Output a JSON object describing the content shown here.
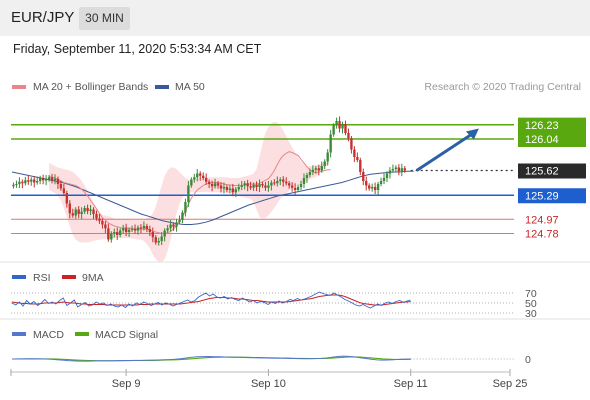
{
  "header": {
    "symbol": "EUR/JPY",
    "timeframe": "30 MIN"
  },
  "datetime": "Friday, September 11, 2020 5:53:34 AM CET",
  "credit": "Research © 2020 Trading Central",
  "colors": {
    "resistance": "#5aa80f",
    "support": "#1e5fcf",
    "pivot": "#2a2a2a",
    "minor": "#e07575",
    "candle_up": "#3a8a3a",
    "candle_down": "#c53030",
    "ma20": "#e8868a",
    "ma50": "#3b5998",
    "band_fill": "#fbd9db",
    "arrow": "#2d5fa6",
    "rsi": "#3366cc",
    "rsi_ma": "#cc2222",
    "macd": "#5577cc",
    "macd_signal": "#55aa11"
  },
  "chart_data": [
    {
      "type": "candlestick",
      "legend": [
        {
          "name": "MA 20 + Bollinger Bands",
          "color": "#e8868a"
        },
        {
          "name": "MA 50",
          "color": "#3b5998"
        }
      ],
      "ylim": [
        124.4,
        126.6
      ],
      "x_ticks": [
        "Sep 9",
        "Sep 10",
        "Sep 11",
        "Sep 25"
      ],
      "x_tick_index": [
        38,
        86,
        134,
        160
      ],
      "n_slots": 168,
      "closes": [
        125.43,
        125.44,
        125.47,
        125.45,
        125.49,
        125.47,
        125.5,
        125.46,
        125.48,
        125.52,
        125.49,
        125.5,
        125.53,
        125.49,
        125.51,
        125.44,
        125.38,
        125.32,
        125.18,
        125.05,
        125.02,
        125.1,
        125.04,
        125.07,
        125.12,
        125.08,
        125.1,
        125.04,
        124.98,
        124.95,
        124.9,
        124.85,
        124.7,
        124.78,
        124.8,
        124.76,
        124.82,
        124.85,
        124.8,
        124.83,
        124.84,
        124.82,
        124.86,
        124.85,
        124.88,
        124.84,
        124.8,
        124.73,
        124.66,
        124.68,
        124.74,
        124.82,
        124.85,
        124.9,
        124.87,
        124.93,
        124.96,
        125.06,
        125.2,
        125.42,
        125.5,
        125.53,
        125.58,
        125.55,
        125.52,
        125.47,
        125.44,
        125.41,
        125.45,
        125.42,
        125.38,
        125.4,
        125.36,
        125.38,
        125.33,
        125.37,
        125.4,
        125.42,
        125.45,
        125.41,
        125.39,
        125.43,
        125.4,
        125.44,
        125.42,
        125.39,
        125.42,
        125.46,
        125.45,
        125.48,
        125.5,
        125.47,
        125.45,
        125.42,
        125.39,
        125.36,
        125.4,
        125.44,
        125.52,
        125.56,
        125.6,
        125.63,
        125.65,
        125.62,
        125.68,
        125.74,
        125.86,
        126.1,
        126.22,
        126.28,
        126.18,
        126.24,
        126.12,
        126.05,
        125.9,
        125.8,
        125.76,
        125.6,
        125.48,
        125.42,
        125.38,
        125.4,
        125.36,
        125.44,
        125.48,
        125.52,
        125.58,
        125.62,
        125.64,
        125.66,
        125.61,
        125.65,
        125.62
      ],
      "ma20": [
        125.54,
        125.53,
        125.52,
        125.5,
        125.48,
        125.46,
        125.45,
        125.44,
        125.43,
        125.42,
        125.4,
        125.37,
        125.33,
        125.28,
        125.22,
        125.17,
        125.11,
        125.05,
        124.99,
        124.96,
        124.92,
        124.9,
        124.88,
        124.87,
        124.86,
        124.85,
        124.86,
        124.85,
        124.85,
        124.84,
        124.84,
        124.84,
        124.84,
        124.84,
        124.83,
        124.81,
        124.8,
        124.79,
        124.78,
        124.78,
        124.79,
        124.81,
        124.84,
        124.88,
        124.94,
        125.0,
        125.08,
        125.17,
        125.25,
        125.31,
        125.36,
        125.39,
        125.42,
        125.44,
        125.45,
        125.46,
        125.46,
        125.46,
        125.45,
        125.44,
        125.43,
        125.43,
        125.42,
        125.42,
        125.42,
        125.42,
        125.43,
        125.44,
        125.44,
        125.44,
        125.44,
        125.45,
        125.47,
        125.49,
        125.51,
        125.56,
        125.62,
        125.7,
        125.77,
        125.82,
        125.85,
        125.87,
        125.86,
        125.84,
        125.82,
        125.77,
        125.72,
        125.67,
        125.63,
        125.6,
        125.59,
        125.6,
        125.61,
        125.62,
        125.63,
        125.63
      ],
      "ma20_start": 12,
      "band_up": [
        125.72,
        125.7,
        125.68,
        125.66,
        125.65,
        125.64,
        125.63,
        125.62,
        125.6,
        125.57,
        125.53,
        125.48,
        125.42,
        125.35,
        125.27,
        125.19,
        125.12,
        125.06,
        125.03,
        125.02,
        125.01,
        125.0,
        124.98,
        124.97,
        124.97,
        124.97,
        124.97,
        124.97,
        124.96,
        124.96,
        124.96,
        124.96,
        124.96,
        124.98,
        125.0,
        125.05,
        125.14,
        125.28,
        125.42,
        125.55,
        125.62,
        125.66,
        125.66,
        125.64,
        125.6,
        125.56,
        125.52,
        125.5,
        125.5,
        125.51,
        125.52,
        125.53,
        125.53,
        125.53,
        125.53,
        125.53,
        125.53,
        125.53,
        125.53,
        125.53,
        125.53,
        125.52,
        125.52,
        125.52,
        125.52,
        125.53,
        125.54,
        125.55,
        125.56,
        125.58,
        125.64,
        125.8,
        125.98,
        126.12,
        126.2,
        126.25,
        126.27,
        126.26,
        126.22,
        126.15,
        126.08,
        126.0,
        125.93,
        125.86,
        125.8,
        125.74,
        125.7,
        125.68,
        125.68,
        125.68,
        125.69,
        125.7,
        125.71,
        125.72,
        125.73,
        125.74
      ],
      "band_dn": [
        125.36,
        125.34,
        125.32,
        125.28,
        125.22,
        125.12,
        125.0,
        124.88,
        124.76,
        124.7,
        124.67,
        124.66,
        124.66,
        124.66,
        124.67,
        124.68,
        124.69,
        124.7,
        124.7,
        124.71,
        124.72,
        124.72,
        124.72,
        124.72,
        124.72,
        124.72,
        124.72,
        124.72,
        124.71,
        124.71,
        124.7,
        124.7,
        124.68,
        124.64,
        124.58,
        124.5,
        124.44,
        124.4,
        124.4,
        124.44,
        124.55,
        124.7,
        124.88,
        125.05,
        125.18,
        125.26,
        125.3,
        125.32,
        125.33,
        125.33,
        125.33,
        125.33,
        125.33,
        125.33,
        125.33,
        125.33,
        125.33,
        125.33,
        125.33,
        125.33,
        125.32,
        125.31,
        125.3,
        125.29,
        125.28,
        125.27,
        125.26,
        125.25,
        125.24,
        125.2,
        125.1,
        125.0,
        124.98,
        124.99,
        125.02,
        125.07,
        125.12,
        125.18,
        125.24,
        125.28,
        125.32,
        125.35,
        125.38,
        125.4,
        125.42,
        125.44,
        125.46,
        125.48,
        125.5,
        125.52,
        125.53
      ],
      "ma50": [
        125.6,
        125.58,
        125.56,
        125.54,
        125.52,
        125.5,
        125.48,
        125.46,
        125.43,
        125.4,
        125.36,
        125.32,
        125.28,
        125.24,
        125.2,
        125.16,
        125.12,
        125.08,
        125.04,
        125.01,
        124.98,
        124.95,
        124.93,
        124.91,
        124.9,
        124.9,
        124.91,
        124.93,
        124.96,
        125.0,
        125.04,
        125.08,
        125.12,
        125.16,
        125.19,
        125.22,
        125.25,
        125.28,
        125.3,
        125.32,
        125.34,
        125.36,
        125.38,
        125.4,
        125.42,
        125.44,
        125.46,
        125.49,
        125.52,
        125.55,
        125.57,
        125.58,
        125.59,
        125.6,
        125.6,
        125.61,
        125.61
      ],
      "levels": [
        {
          "value": 126.23,
          "label": "126.23",
          "kind": "resistance"
        },
        {
          "value": 126.04,
          "label": "126.04",
          "kind": "resistance"
        },
        {
          "value": 125.62,
          "label": "125.62",
          "kind": "pivot"
        },
        {
          "value": 125.29,
          "label": "125.29",
          "kind": "support"
        },
        {
          "value": 124.97,
          "label": "124.97",
          "kind": "minor"
        },
        {
          "value": 124.78,
          "label": "124.78",
          "kind": "minor"
        }
      ],
      "arrow": {
        "from_index": 136,
        "from_value": 125.62,
        "to_index": 157,
        "to_value": 126.18
      }
    },
    {
      "type": "line",
      "legend": [
        {
          "name": "RSI",
          "color": "#3366cc"
        },
        {
          "name": "9MA",
          "color": "#cc2222"
        }
      ],
      "ylim": [
        20,
        80
      ],
      "y_ticks": [
        70,
        50,
        30
      ],
      "rsi": [
        50,
        46,
        52,
        44,
        55,
        48,
        53,
        45,
        50,
        57,
        49,
        52,
        48,
        55,
        60,
        45,
        50,
        56,
        42,
        47,
        51,
        44,
        46,
        52,
        48,
        50,
        45,
        48,
        44,
        42,
        46,
        41,
        48,
        44,
        50,
        47,
        52,
        49,
        45,
        48,
        51,
        46,
        50,
        48,
        44,
        47,
        50,
        53,
        56,
        52,
        55,
        62,
        66,
        70,
        64,
        68,
        62,
        60,
        63,
        58,
        61,
        57,
        55,
        60,
        56,
        52,
        55,
        50,
        53,
        51,
        47,
        52,
        49,
        54,
        50,
        53,
        57,
        55,
        59,
        56,
        58,
        61,
        64,
        68,
        72,
        69,
        67,
        65,
        70,
        66,
        62,
        57,
        54,
        50,
        46,
        44,
        47,
        43,
        40,
        44,
        48,
        45,
        50,
        52,
        49,
        53,
        55,
        51,
        54,
        56
      ],
      "rsi_ma": [
        52,
        51,
        50,
        49,
        49,
        48,
        48,
        48,
        49,
        50,
        50,
        50,
        50,
        51,
        52,
        51,
        50,
        50,
        49,
        48,
        48,
        47,
        47,
        47,
        47,
        47,
        46,
        46,
        46,
        46,
        46,
        46,
        46,
        46,
        46,
        47,
        47,
        47,
        48,
        48,
        48,
        48,
        48,
        48,
        48,
        48,
        48,
        49,
        50,
        51,
        52,
        53,
        55,
        57,
        59,
        60,
        61,
        61,
        61,
        60,
        60,
        59,
        58,
        58,
        57,
        56,
        55,
        55,
        54,
        53,
        52,
        52,
        52,
        52,
        52,
        52,
        53,
        54,
        55,
        56,
        57,
        58,
        59,
        61,
        63,
        64,
        65,
        66,
        66,
        66,
        65,
        63,
        60,
        57,
        54,
        51,
        49,
        48,
        47,
        46,
        46,
        46,
        47,
        48,
        49,
        50,
        51,
        52,
        52,
        53
      ]
    },
    {
      "type": "line",
      "legend": [
        {
          "name": "MACD",
          "color": "#5577cc"
        },
        {
          "name": "MACD Signal",
          "color": "#55aa11"
        }
      ],
      "ylim": [
        -1,
        1
      ],
      "y_ticks": [
        0
      ],
      "macd": [
        0.0,
        0.01,
        0.02,
        0.03,
        0.03,
        0.02,
        0.0,
        -0.05,
        -0.12,
        -0.2,
        -0.28,
        -0.33,
        -0.36,
        -0.37,
        -0.36,
        -0.34,
        -0.32,
        -0.3,
        -0.29,
        -0.28,
        -0.27,
        -0.26,
        -0.25,
        -0.24,
        -0.22,
        -0.2,
        -0.17,
        -0.14,
        -0.1,
        -0.05,
        0.05,
        0.18,
        0.3,
        0.38,
        0.42,
        0.43,
        0.41,
        0.38,
        0.35,
        0.32,
        0.3,
        0.28,
        0.25,
        0.22,
        0.2,
        0.18,
        0.16,
        0.14,
        0.12,
        0.1,
        0.08,
        0.07,
        0.06,
        0.06,
        0.07,
        0.1,
        0.18,
        0.32,
        0.44,
        0.5,
        0.46,
        0.36,
        0.22,
        0.08,
        -0.06,
        -0.16,
        -0.2,
        -0.18,
        -0.12,
        -0.06,
        -0.02,
        0.0
      ],
      "signal": [
        0.0,
        0.0,
        0.01,
        0.01,
        0.02,
        0.02,
        0.02,
        0.01,
        -0.02,
        -0.06,
        -0.11,
        -0.16,
        -0.21,
        -0.25,
        -0.28,
        -0.3,
        -0.31,
        -0.31,
        -0.31,
        -0.3,
        -0.29,
        -0.28,
        -0.27,
        -0.26,
        -0.25,
        -0.24,
        -0.22,
        -0.2,
        -0.17,
        -0.14,
        -0.1,
        -0.04,
        0.04,
        0.12,
        0.19,
        0.25,
        0.29,
        0.32,
        0.33,
        0.33,
        0.32,
        0.31,
        0.29,
        0.27,
        0.25,
        0.23,
        0.21,
        0.19,
        0.17,
        0.15,
        0.13,
        0.11,
        0.1,
        0.09,
        0.08,
        0.09,
        0.11,
        0.16,
        0.23,
        0.3,
        0.35,
        0.36,
        0.33,
        0.27,
        0.19,
        0.1,
        0.02,
        -0.04,
        -0.07,
        -0.08,
        -0.07,
        -0.05
      ]
    }
  ]
}
